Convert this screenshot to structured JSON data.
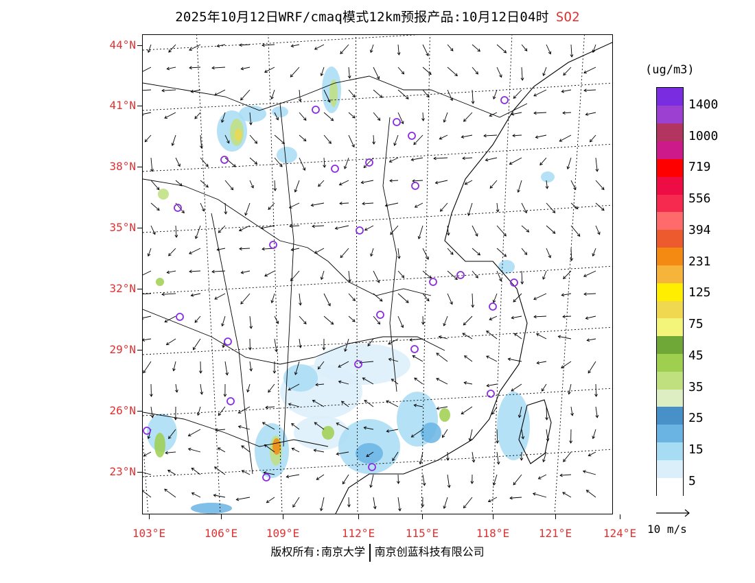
{
  "title": {
    "main": "2025年10月12日WRF/cmaq模式12km预报产品:10月12日04时",
    "species": "SO2",
    "species_color": "#e03030"
  },
  "map": {
    "lat_labels": [
      "44°N",
      "41°N",
      "38°N",
      "35°N",
      "32°N",
      "29°N",
      "26°N",
      "23°N"
    ],
    "lon_labels": [
      "103°E",
      "106°E",
      "109°E",
      "112°E",
      "115°E",
      "118°E",
      "121°E",
      "124°E"
    ],
    "label_color": "#e03030",
    "city_marker_color": "#8a2be2",
    "hotspots_color_scale": "SO2 concentration"
  },
  "legend": {
    "unit": "(ug/m3)",
    "labels": [
      "1400",
      "1000",
      "719",
      "556",
      "394",
      "231",
      "125",
      "75",
      "45",
      "35",
      "25",
      "15",
      "5"
    ],
    "colors": [
      "#ffffff",
      "#dbeffa",
      "#a7dcf5",
      "#6ab4e4",
      "#4790c8",
      "#dceec2",
      "#c0df7e",
      "#9ecf4e",
      "#70a837",
      "#f2f57a",
      "#f0d850",
      "#ffee00",
      "#f7b43a",
      "#f48a11",
      "#ec5a2e",
      "#ff6a6a",
      "#f52a4e",
      "#ee0c45",
      "#ff0000",
      "#cc1a8a",
      "#b1355f",
      "#9b40d0",
      "#7a2ce0"
    ]
  },
  "wind_reference": {
    "label": "10 m/s"
  },
  "footer": {
    "copyright": "版权所有:南京大学",
    "company": "南京创蓝科技有限公司"
  }
}
